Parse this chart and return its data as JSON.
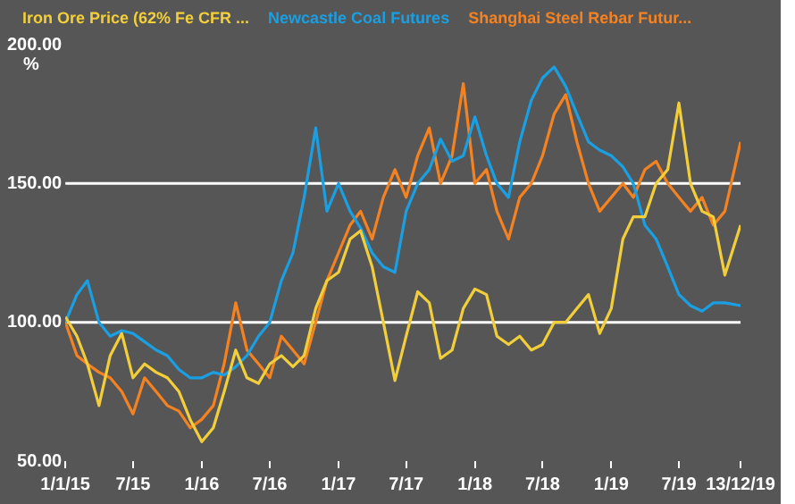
{
  "chart_data": {
    "type": "line",
    "ylabel": "%",
    "legend": "top",
    "grid": false,
    "marker": "none",
    "line_style": "solid",
    "xlim": [
      "2015-01-01",
      "2019-12-13"
    ],
    "xticks": [
      {
        "value": "2015-01-01",
        "label": "1/1/15"
      },
      {
        "value": "2015-07-01",
        "label": "7/15"
      },
      {
        "value": "2016-01-01",
        "label": "1/16"
      },
      {
        "value": "2016-07-01",
        "label": "7/16"
      },
      {
        "value": "2017-01-01",
        "label": "1/17"
      },
      {
        "value": "2017-07-01",
        "label": "7/17"
      },
      {
        "value": "2018-01-01",
        "label": "1/18"
      },
      {
        "value": "2018-07-01",
        "label": "7/18"
      },
      {
        "value": "2019-01-01",
        "label": "1/19"
      },
      {
        "value": "2019-07-01",
        "label": "7/19"
      },
      {
        "value": "2019-12-13",
        "label": "13/12/19"
      }
    ],
    "ylim": [
      50,
      200
    ],
    "yticks": [
      {
        "value": 50,
        "label": "50.00"
      },
      {
        "value": 100,
        "label": "100.00"
      },
      {
        "value": 150,
        "label": "150.00"
      },
      {
        "value": 200,
        "label": "200.00"
      }
    ],
    "ref_lines": [
      {
        "axis": "y",
        "value": 100,
        "color": "#ffffff"
      },
      {
        "axis": "y",
        "value": 150,
        "color": "#ffffff"
      }
    ],
    "x": [
      "2015-01-01",
      "2015-02-01",
      "2015-03-01",
      "2015-04-01",
      "2015-05-01",
      "2015-06-01",
      "2015-07-01",
      "2015-08-01",
      "2015-09-01",
      "2015-10-01",
      "2015-11-01",
      "2015-12-01",
      "2016-01-01",
      "2016-02-01",
      "2016-03-01",
      "2016-04-01",
      "2016-05-01",
      "2016-06-01",
      "2016-07-01",
      "2016-08-01",
      "2016-09-01",
      "2016-10-01",
      "2016-11-01",
      "2016-12-01",
      "2017-01-01",
      "2017-02-01",
      "2017-03-01",
      "2017-04-01",
      "2017-05-01",
      "2017-06-01",
      "2017-07-01",
      "2017-08-01",
      "2017-09-01",
      "2017-10-01",
      "2017-11-01",
      "2017-12-01",
      "2018-01-01",
      "2018-02-01",
      "2018-03-01",
      "2018-04-01",
      "2018-05-01",
      "2018-06-01",
      "2018-07-01",
      "2018-08-01",
      "2018-09-01",
      "2018-10-01",
      "2018-11-01",
      "2018-12-01",
      "2019-01-01",
      "2019-02-01",
      "2019-03-01",
      "2019-04-01",
      "2019-05-01",
      "2019-06-01",
      "2019-07-01",
      "2019-08-01",
      "2019-09-01",
      "2019-10-01",
      "2019-11-01",
      "2019-12-13"
    ],
    "series": [
      {
        "name": "Iron Ore Price (62% Fe CFR ...",
        "color": "#f2cf3a",
        "values": [
          102,
          95,
          85,
          70,
          88,
          96,
          80,
          85,
          82,
          80,
          75,
          65,
          57,
          62,
          75,
          90,
          80,
          78,
          85,
          88,
          84,
          88,
          105,
          115,
          118,
          130,
          133,
          120,
          100,
          79,
          95,
          111,
          107,
          87,
          90,
          105,
          112,
          110,
          95,
          92,
          95,
          90,
          92,
          100,
          100,
          105,
          110,
          96,
          105,
          130,
          138,
          138,
          150,
          155,
          179,
          150,
          140,
          138,
          117,
          135
        ]
      },
      {
        "name": "Newcastle Coal Futures",
        "color": "#1a9fe3",
        "values": [
          100,
          110,
          115,
          100,
          95,
          97,
          96,
          93,
          90,
          88,
          83,
          80,
          80,
          82,
          81,
          84,
          88,
          95,
          100,
          115,
          125,
          145,
          170,
          140,
          150,
          140,
          134,
          125,
          120,
          118,
          140,
          150,
          155,
          166,
          158,
          160,
          174,
          160,
          150,
          145,
          165,
          180,
          188,
          192,
          185,
          175,
          165,
          162,
          160,
          156,
          150,
          135,
          130,
          120,
          110,
          106,
          104,
          107,
          107,
          106
        ]
      },
      {
        "name": "Shanghai Steel Rebar Futur...",
        "color": "#f58220",
        "values": [
          100,
          88,
          85,
          82,
          80,
          75,
          67,
          80,
          75,
          70,
          68,
          62,
          65,
          70,
          85,
          107,
          90,
          85,
          80,
          95,
          90,
          85,
          100,
          115,
          125,
          135,
          140,
          130,
          145,
          155,
          145,
          160,
          170,
          150,
          160,
          186,
          150,
          155,
          140,
          130,
          145,
          150,
          160,
          175,
          182,
          165,
          150,
          140,
          145,
          150,
          145,
          155,
          158,
          150,
          145,
          140,
          145,
          135,
          140,
          165
        ]
      }
    ]
  }
}
